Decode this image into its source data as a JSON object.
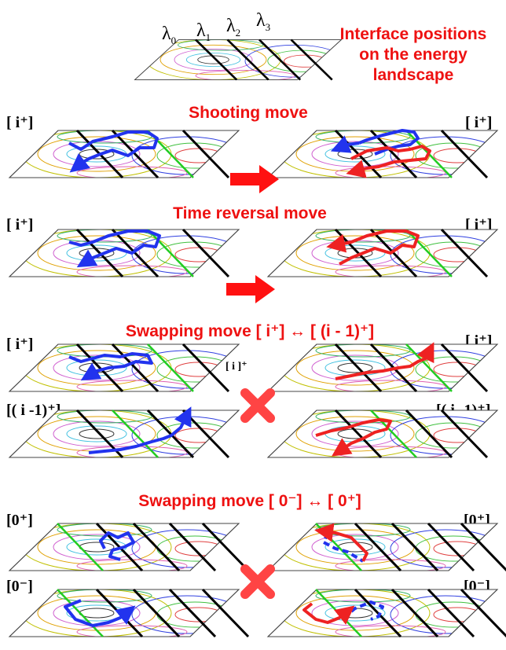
{
  "title": {
    "line1": "Interface positions",
    "line2": "on the energy",
    "line3": "landscape"
  },
  "lambdas": [
    {
      "sym": "λ",
      "sub": "0"
    },
    {
      "sym": "λ",
      "sub": "1"
    },
    {
      "sym": "λ",
      "sub": "2"
    },
    {
      "sym": "λ",
      "sub": "3"
    }
  ],
  "sections": {
    "shooting": "Shooting move",
    "time_reversal": "Time reversal move",
    "swap_i": "Swapping move [ i⁺] ↔ [ (i - 1)⁺]",
    "swap_0": "Swapping move [ 0⁻] ↔ [ 0⁺]"
  },
  "labels": {
    "i_plus": "[ i⁺]",
    "i_minus1_plus": "[( i -1)⁺]",
    "i_small": "[ i ]⁺",
    "zero_plus": "[0⁺]",
    "zero_minus": "[0⁻]"
  },
  "colors": {
    "accent_red": "#ee1111",
    "path_blue": "#2233ee",
    "path_red": "#ee2222",
    "interface_black": "#000000",
    "interface_green": "#22cc22"
  },
  "icons": [
    "right-arrow-icon",
    "swap-cross-icon"
  ]
}
